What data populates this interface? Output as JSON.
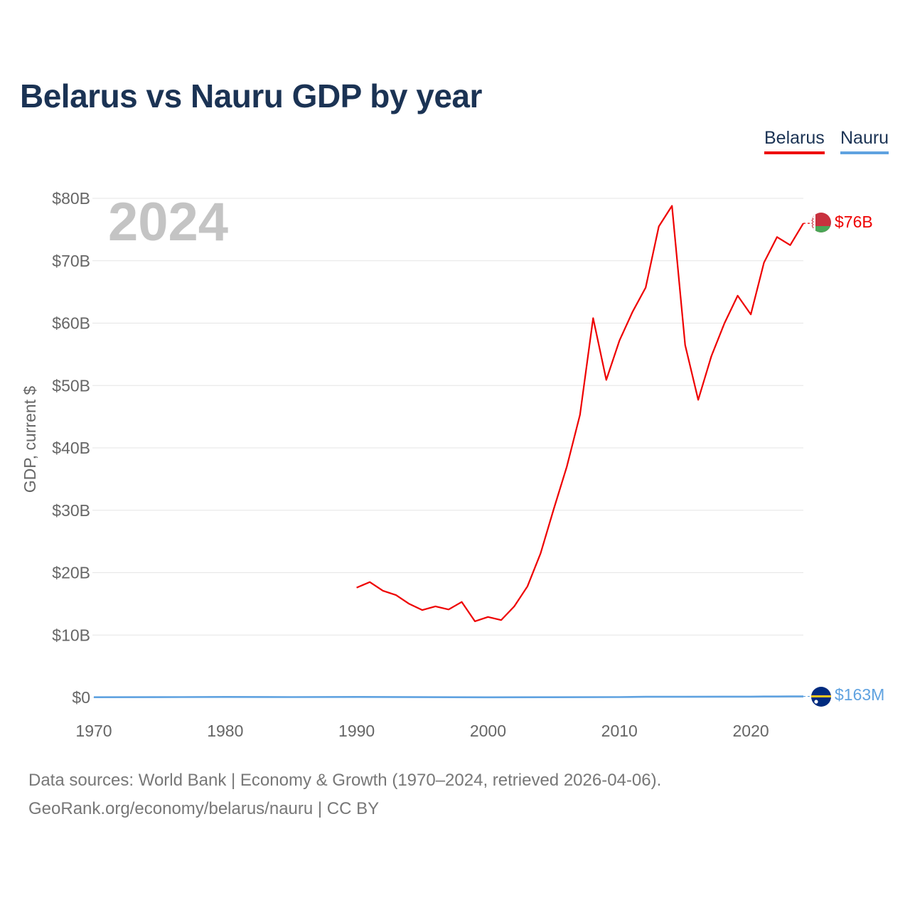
{
  "title": "Belarus vs Nauru GDP by year",
  "legend": [
    {
      "label": "Belarus",
      "color": "#ee0000"
    },
    {
      "label": "Nauru",
      "color": "#5fa2e0"
    }
  ],
  "year_watermark": "2024",
  "footer": {
    "source": "Data sources: World Bank | Economy & Growth (1970–2024, retrieved 2026-04-06).",
    "credit": "GeoRank.org/economy/belarus/nauru | CC BY"
  },
  "chart_data": {
    "type": "line",
    "title": "Belarus vs Nauru GDP by year",
    "xlabel": "",
    "ylabel": "GDP, current $",
    "xlim": [
      1970,
      2024
    ],
    "ylim": [
      0,
      80
    ],
    "y_unit": "billions USD",
    "grid": true,
    "x_ticks": [
      1970,
      1980,
      1990,
      2000,
      2010,
      2020
    ],
    "x_tick_labels": [
      "1970",
      "1980",
      "1990",
      "2000",
      "2010",
      "2020"
    ],
    "y_ticks": [
      0,
      10,
      20,
      30,
      40,
      50,
      60,
      70,
      80
    ],
    "y_tick_labels": [
      "$0",
      "$10B",
      "$20B",
      "$30B",
      "$40B",
      "$50B",
      "$60B",
      "$70B",
      "$80B"
    ],
    "series": [
      {
        "name": "Belarus",
        "color": "#ee0000",
        "end_label": "$76B",
        "points": [
          [
            1990,
            17.6
          ],
          [
            1991,
            18.5
          ],
          [
            1992,
            17.1
          ],
          [
            1993,
            16.4
          ],
          [
            1994,
            15.0
          ],
          [
            1995,
            14.0
          ],
          [
            1996,
            14.6
          ],
          [
            1997,
            14.1
          ],
          [
            1998,
            15.3
          ],
          [
            1999,
            12.2
          ],
          [
            2000,
            12.9
          ],
          [
            2001,
            12.4
          ],
          [
            2002,
            14.6
          ],
          [
            2003,
            17.8
          ],
          [
            2004,
            23.1
          ],
          [
            2005,
            30.2
          ],
          [
            2006,
            37.0
          ],
          [
            2007,
            45.3
          ],
          [
            2008,
            60.8
          ],
          [
            2009,
            50.9
          ],
          [
            2010,
            57.2
          ],
          [
            2011,
            61.8
          ],
          [
            2012,
            65.7
          ],
          [
            2013,
            75.5
          ],
          [
            2014,
            78.8
          ],
          [
            2015,
            56.5
          ],
          [
            2016,
            47.7
          ],
          [
            2017,
            54.7
          ],
          [
            2018,
            60.0
          ],
          [
            2019,
            64.4
          ],
          [
            2020,
            61.4
          ],
          [
            2021,
            69.7
          ],
          [
            2022,
            73.8
          ],
          [
            2023,
            72.5
          ],
          [
            2024,
            76.0
          ]
        ]
      },
      {
        "name": "Nauru",
        "color": "#5fa2e0",
        "end_label": "$163M",
        "points": [
          [
            1970,
            0.03
          ],
          [
            1975,
            0.05
          ],
          [
            1980,
            0.08
          ],
          [
            1985,
            0.06
          ],
          [
            1990,
            0.08
          ],
          [
            1995,
            0.05
          ],
          [
            2000,
            0.02
          ],
          [
            2005,
            0.03
          ],
          [
            2010,
            0.06
          ],
          [
            2012,
            0.1
          ],
          [
            2015,
            0.1
          ],
          [
            2018,
            0.12
          ],
          [
            2020,
            0.13
          ],
          [
            2021,
            0.15
          ],
          [
            2022,
            0.15
          ],
          [
            2023,
            0.16
          ],
          [
            2024,
            0.163
          ]
        ]
      }
    ]
  }
}
